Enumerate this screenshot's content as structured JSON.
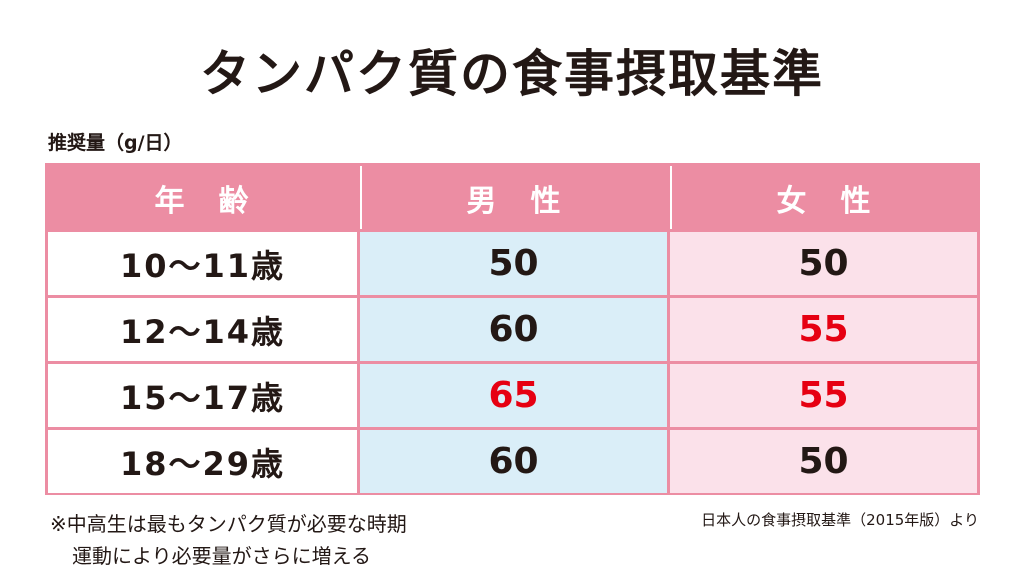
{
  "title": "タンパク質の食事摂取基準",
  "unit_label": "推奨量（g/日）",
  "table": {
    "headers": [
      "年　齢",
      "男　性",
      "女　性"
    ],
    "rows": [
      {
        "age": "10〜11歳",
        "male": "50",
        "female": "50"
      },
      {
        "age": "12〜14歳",
        "male": "60",
        "female": "55"
      },
      {
        "age": "15〜17歳",
        "male": "65",
        "female": "55"
      },
      {
        "age": "18〜29歳",
        "male": "60",
        "female": "50"
      }
    ],
    "colors": {
      "header": "#ec8da3",
      "male_bg": "#daeef8",
      "female_bg": "#fbe1ea",
      "highlight_text": "#e60012"
    }
  },
  "note": {
    "line1": "※中高生は最もタンパク質が必要な時期",
    "line2": "運動により必要量がさらに増える"
  },
  "source": "日本人の食事摂取基準（2015年版）より"
}
